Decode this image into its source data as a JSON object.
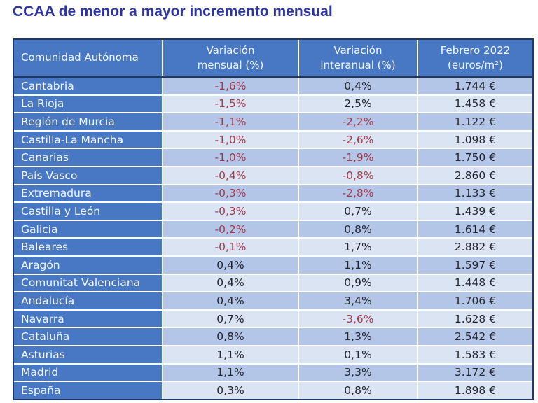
{
  "title": "CCAA de menor a mayor incremento mensual",
  "colors": {
    "title_text": "#2C35A3",
    "header_bg": "#4878C4",
    "first_column_bg": "#4878C4",
    "row_stripe_dark": "#B4C6E7",
    "row_stripe_light": "#DBE4F3",
    "negative_value_text": "#A23B4E",
    "positive_value_text": "#23272F",
    "table_outer_border": "#1F3864",
    "inner_gridline": "#FFFFFF",
    "header_text": "#FFFFFF"
  },
  "table": {
    "headers": [
      "Comunidad Autónoma",
      "Variación\nmensual (%)",
      "Variación\ninteranual (%)",
      "Febrero 2022\n(euros/m²)"
    ],
    "rows": [
      {
        "name": "Cantabria",
        "monthly": "-1,6%",
        "yearly": "0,4%",
        "price": "1.744 €"
      },
      {
        "name": "La Rioja",
        "monthly": "-1,5%",
        "yearly": "2,5%",
        "price": "1.458 €"
      },
      {
        "name": "Región de Murcia",
        "monthly": "-1,1%",
        "yearly": "-2,2%",
        "price": "1.122 €"
      },
      {
        "name": "Castilla-La Mancha",
        "monthly": "-1,0%",
        "yearly": "-2,6%",
        "price": "1.098 €"
      },
      {
        "name": "Canarias",
        "monthly": "-1,0%",
        "yearly": "-1,9%",
        "price": "1.750 €"
      },
      {
        "name": "País Vasco",
        "monthly": "-0,4%",
        "yearly": "-0,8%",
        "price": "2.860 €"
      },
      {
        "name": "Extremadura",
        "monthly": "-0,3%",
        "yearly": "-2,8%",
        "price": "1.133 €"
      },
      {
        "name": "Castilla y León",
        "monthly": "-0,3%",
        "yearly": "0,7%",
        "price": "1.439 €"
      },
      {
        "name": "Galicia",
        "monthly": "-0,2%",
        "yearly": "0,8%",
        "price": "1.614 €"
      },
      {
        "name": "Baleares",
        "monthly": "-0,1%",
        "yearly": "1,7%",
        "price": "2.882 €"
      },
      {
        "name": "Aragón",
        "monthly": "0,4%",
        "yearly": "1,1%",
        "price": "1.597 €"
      },
      {
        "name": "Comunitat Valenciana",
        "monthly": "0,4%",
        "yearly": "0,9%",
        "price": "1.448 €"
      },
      {
        "name": "Andalucía",
        "monthly": "0,4%",
        "yearly": "3,4%",
        "price": "1.706 €"
      },
      {
        "name": "Navarra",
        "monthly": "0,7%",
        "yearly": "-3,6%",
        "price": "1.628 €"
      },
      {
        "name": "Cataluña",
        "monthly": "0,8%",
        "yearly": "1,3%",
        "price": "2.542 €"
      },
      {
        "name": "Asturias",
        "monthly": "1,1%",
        "yearly": "0,1%",
        "price": "1.583 €"
      },
      {
        "name": "Madrid",
        "monthly": "1,1%",
        "yearly": "3,3%",
        "price": "3.172 €"
      },
      {
        "name": "España",
        "monthly": "0,3%",
        "yearly": "0,8%",
        "price": "1.898 €"
      }
    ]
  },
  "chart_data": {
    "type": "table",
    "title": "CCAA de menor a mayor incremento mensual",
    "columns": [
      "Comunidad Autónoma",
      "Variación mensual (%)",
      "Variación interanual (%)",
      "Febrero 2022 (euros/m²)"
    ],
    "categories": [
      "Cantabria",
      "La Rioja",
      "Región de Murcia",
      "Castilla-La Mancha",
      "Canarias",
      "País Vasco",
      "Extremadura",
      "Castilla y León",
      "Galicia",
      "Baleares",
      "Aragón",
      "Comunitat Valenciana",
      "Andalucía",
      "Navarra",
      "Cataluña",
      "Asturias",
      "Madrid",
      "España"
    ],
    "series": [
      {
        "name": "Variación mensual (%)",
        "values": [
          -1.6,
          -1.5,
          -1.1,
          -1.0,
          -1.0,
          -0.4,
          -0.3,
          -0.3,
          -0.2,
          -0.1,
          0.4,
          0.4,
          0.4,
          0.7,
          0.8,
          1.1,
          1.1,
          0.3
        ]
      },
      {
        "name": "Variación interanual (%)",
        "values": [
          0.4,
          2.5,
          -2.2,
          -2.6,
          -1.9,
          -0.8,
          -2.8,
          0.7,
          0.8,
          1.7,
          1.1,
          0.9,
          3.4,
          -3.6,
          1.3,
          0.1,
          3.3,
          0.8
        ]
      },
      {
        "name": "Febrero 2022 (euros/m²)",
        "values": [
          1744,
          1458,
          1122,
          1098,
          1750,
          2860,
          1133,
          1439,
          1614,
          2882,
          1597,
          1448,
          1706,
          1628,
          2542,
          1583,
          3172,
          1898
        ]
      }
    ],
    "layout": {
      "sort_order": "menor a mayor incremento mensual",
      "negative_values_colored_red": true
    }
  }
}
